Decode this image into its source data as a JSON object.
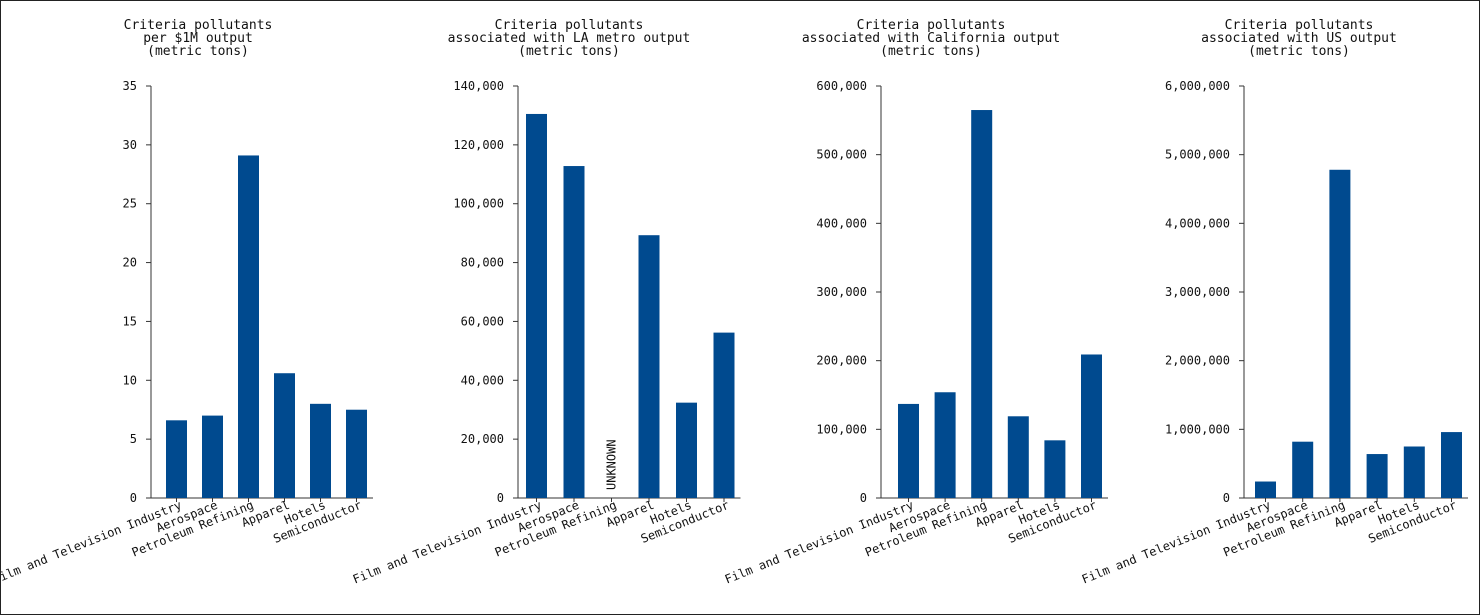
{
  "colors": {
    "bar": "#004a8f",
    "axis": "#333333",
    "border": "#222222"
  },
  "chart_data": [
    {
      "type": "bar",
      "title_lines": [
        "Criteria pollutants",
        "per $1M output",
        "(metric tons)"
      ],
      "categories": [
        "Film and Television Industry",
        "Aerospace",
        "Petroleum Refining",
        "Apparel",
        "Hotels",
        "Semiconductor"
      ],
      "values": [
        6.6,
        7.0,
        29.1,
        10.6,
        8.0,
        7.5
      ],
      "ylim": [
        0,
        35
      ],
      "yticks": [
        0,
        5,
        10,
        15,
        20,
        25,
        30,
        35
      ],
      "ytick_labels": [
        "0",
        "5",
        "10",
        "15",
        "20",
        "25",
        "30",
        "35"
      ],
      "grid": false
    },
    {
      "type": "bar",
      "title_lines": [
        "Criteria pollutants",
        "associated with LA metro output",
        "(metric tons)"
      ],
      "categories": [
        "Film and Television Industry",
        "Aerospace",
        "Petroleum Refining",
        "Apparel",
        "Hotels",
        "Semiconductor"
      ],
      "values": [
        130500,
        112800,
        null,
        89300,
        32400,
        56200
      ],
      "ylim": [
        0,
        140000
      ],
      "yticks": [
        0,
        20000,
        40000,
        60000,
        80000,
        100000,
        120000,
        140000
      ],
      "ytick_labels": [
        "0",
        "20,000",
        "40,000",
        "60,000",
        "80,000",
        "100,000",
        "120,000",
        "140,000"
      ],
      "annotations": [
        {
          "category_index": 2,
          "text": "UNKNOWN"
        }
      ],
      "grid": false
    },
    {
      "type": "bar",
      "title_lines": [
        "Criteria pollutants",
        "associated with California output",
        "(metric tons)"
      ],
      "categories": [
        "Film and Television Industry",
        "Aerospace",
        "Petroleum Refining",
        "Apparel",
        "Hotels",
        "Semiconductor"
      ],
      "values": [
        137000,
        154000,
        565000,
        119000,
        84000,
        209000
      ],
      "ylim": [
        0,
        600000
      ],
      "yticks": [
        0,
        100000,
        200000,
        300000,
        400000,
        500000,
        600000
      ],
      "ytick_labels": [
        "0",
        "100,000",
        "200,000",
        "300,000",
        "400,000",
        "500,000",
        "600,000"
      ],
      "grid": false
    },
    {
      "type": "bar",
      "title_lines": [
        "Criteria pollutants",
        "associated with US output",
        "(metric tons)"
      ],
      "categories": [
        "Film and Television Industry",
        "Aerospace",
        "Petroleum Refining",
        "Apparel",
        "Hotels",
        "Semiconductor"
      ],
      "values": [
        240000,
        820000,
        4780000,
        640000,
        750000,
        960000
      ],
      "ylim": [
        0,
        6000000
      ],
      "yticks": [
        0,
        1000000,
        2000000,
        3000000,
        4000000,
        5000000,
        6000000
      ],
      "ytick_labels": [
        "0",
        "1,000,000",
        "2,000,000",
        "3,000,000",
        "4,000,000",
        "5,000,000",
        "6,000,000"
      ],
      "grid": false
    }
  ]
}
